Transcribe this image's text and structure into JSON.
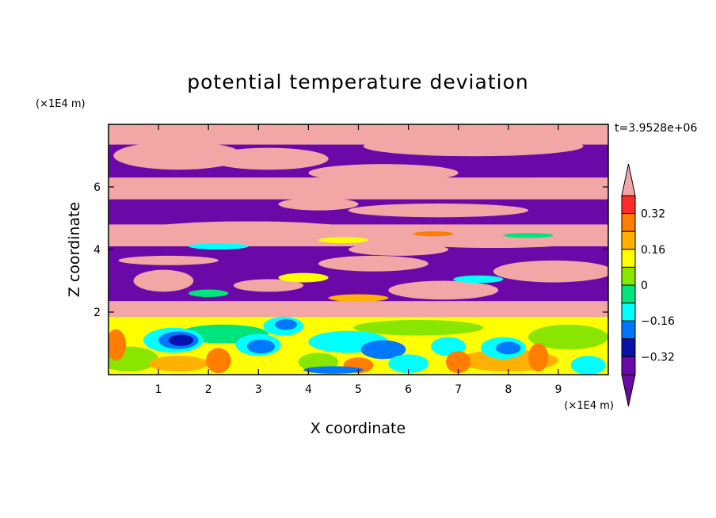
{
  "chart_data": {
    "type": "heatmap",
    "title": "potential temperature deviation",
    "xlabel": "X coordinate",
    "ylabel": "Z coordinate",
    "x_unit": "(×1E4 m)",
    "y_unit": "(×1E4 m)",
    "time_label": "t=3.9528e+06",
    "xlim": [
      0,
      10
    ],
    "ylim": [
      0,
      8
    ],
    "x_ticks": [
      1,
      2,
      3,
      4,
      5,
      6,
      7,
      8,
      9
    ],
    "y_ticks": [
      2,
      4,
      6
    ],
    "colorbar": {
      "levels": [
        -0.4,
        -0.32,
        -0.24,
        -0.16,
        -0.08,
        0,
        0.08,
        0.16,
        0.24,
        0.32,
        0.4
      ],
      "tick_labels": [
        "0.32",
        "0.16",
        "0",
        "−0.16",
        "−0.32"
      ],
      "tick_values": [
        0.32,
        0.16,
        0,
        -0.16,
        -0.32
      ],
      "colors": [
        "#f3a6a6",
        "#ff2b2b",
        "#ff7d00",
        "#ffb000",
        "#ffff00",
        "#89e600",
        "#00e47c",
        "#00ffff",
        "#0077ff",
        "#0a10aa",
        "#6b09a8",
        "#6b09a8"
      ],
      "extend": "both"
    },
    "background_bands": [
      {
        "z": [
          7.35,
          8.0
        ],
        "color": "#f3a6a6"
      },
      {
        "z": [
          6.3,
          7.35
        ],
        "color": "#6b09a8"
      },
      {
        "z": [
          5.6,
          6.3
        ],
        "color": "#f3a6a6"
      },
      {
        "z": [
          4.8,
          5.6
        ],
        "color": "#6b09a8"
      },
      {
        "z": [
          4.1,
          4.8
        ],
        "color": "#f3a6a6"
      },
      {
        "z": [
          3.55,
          4.1
        ],
        "color": "#6b09a8"
      },
      {
        "z": [
          2.35,
          3.55
        ],
        "color": "#6b09a8"
      },
      {
        "z": [
          1.85,
          2.35
        ],
        "color": "#f3a6a6"
      },
      {
        "z": [
          0.0,
          1.85
        ],
        "color": "#ffff00"
      }
    ],
    "features": [
      {
        "shape": "blob",
        "x": 1.4,
        "z": 7.0,
        "rx": 1.3,
        "rz": 0.45,
        "color": "#f3a6a6"
      },
      {
        "shape": "blob",
        "x": 3.2,
        "z": 6.9,
        "rx": 1.2,
        "rz": 0.35,
        "color": "#f3a6a6"
      },
      {
        "shape": "blob",
        "x": 7.3,
        "z": 7.3,
        "rx": 2.2,
        "rz": 0.32,
        "color": "#f3a6a6"
      },
      {
        "shape": "blob",
        "x": 5.5,
        "z": 6.45,
        "rx": 1.5,
        "rz": 0.28,
        "color": "#f3a6a6"
      },
      {
        "shape": "blob",
        "x": 8.8,
        "z": 6.0,
        "rx": 1.4,
        "rz": 0.3,
        "color": "#f3a6a6"
      },
      {
        "shape": "blob",
        "x": 6.6,
        "z": 5.25,
        "rx": 1.8,
        "rz": 0.22,
        "color": "#f3a6a6"
      },
      {
        "shape": "blob",
        "x": 4.2,
        "z": 5.45,
        "rx": 0.8,
        "rz": 0.2,
        "color": "#f3a6a6"
      },
      {
        "shape": "blob",
        "x": 2.8,
        "z": 4.6,
        "rx": 2.2,
        "rz": 0.3,
        "color": "#f3a6a6"
      },
      {
        "shape": "blob",
        "x": 7.7,
        "z": 4.3,
        "rx": 2.0,
        "rz": 0.25,
        "color": "#f3a6a6"
      },
      {
        "shape": "blob",
        "x": 5.8,
        "z": 4.0,
        "rx": 1.0,
        "rz": 0.2,
        "color": "#f3a6a6"
      },
      {
        "shape": "blob",
        "x": 1.2,
        "z": 3.65,
        "rx": 1.0,
        "rz": 0.15,
        "color": "#f3a6a6"
      },
      {
        "shape": "blob",
        "x": 5.3,
        "z": 3.55,
        "rx": 1.1,
        "rz": 0.25,
        "color": "#f3a6a6"
      },
      {
        "shape": "blob",
        "x": 8.9,
        "z": 3.3,
        "rx": 1.2,
        "rz": 0.35,
        "color": "#f3a6a6"
      },
      {
        "shape": "blob",
        "x": 1.1,
        "z": 3.0,
        "rx": 0.6,
        "rz": 0.35,
        "color": "#f3a6a6"
      },
      {
        "shape": "blob",
        "x": 6.7,
        "z": 2.7,
        "rx": 1.1,
        "rz": 0.3,
        "color": "#f3a6a6"
      },
      {
        "shape": "blob",
        "x": 3.2,
        "z": 2.85,
        "rx": 0.7,
        "rz": 0.2,
        "color": "#f3a6a6"
      },
      {
        "shape": "blob",
        "x": 2.2,
        "z": 4.1,
        "rx": 0.6,
        "rz": 0.1,
        "color": "#00ffff"
      },
      {
        "shape": "blob",
        "x": 4.7,
        "z": 4.3,
        "rx": 0.5,
        "rz": 0.1,
        "color": "#ffff00"
      },
      {
        "shape": "blob",
        "x": 6.5,
        "z": 4.5,
        "rx": 0.4,
        "rz": 0.08,
        "color": "#ff7d00"
      },
      {
        "shape": "blob",
        "x": 8.4,
        "z": 4.45,
        "rx": 0.5,
        "rz": 0.08,
        "color": "#00e47c"
      },
      {
        "shape": "blob",
        "x": 3.9,
        "z": 3.1,
        "rx": 0.5,
        "rz": 0.15,
        "color": "#ffff00"
      },
      {
        "shape": "blob",
        "x": 7.4,
        "z": 3.05,
        "rx": 0.5,
        "rz": 0.12,
        "color": "#00ffff"
      },
      {
        "shape": "blob",
        "x": 2.0,
        "z": 2.6,
        "rx": 0.4,
        "rz": 0.12,
        "color": "#00e47c"
      },
      {
        "shape": "blob",
        "x": 5.0,
        "z": 2.45,
        "rx": 0.6,
        "rz": 0.12,
        "color": "#ffb000"
      },
      {
        "shape": "blob",
        "x": 6.2,
        "z": 1.5,
        "rx": 1.3,
        "rz": 0.25,
        "color": "#89e600"
      },
      {
        "shape": "blob",
        "x": 2.3,
        "z": 1.3,
        "rx": 0.9,
        "rz": 0.3,
        "color": "#00e47c"
      },
      {
        "shape": "blob",
        "x": 4.8,
        "z": 1.05,
        "rx": 0.8,
        "rz": 0.35,
        "color": "#00ffff"
      },
      {
        "shape": "blob",
        "x": 9.2,
        "z": 1.2,
        "rx": 0.8,
        "rz": 0.4,
        "color": "#89e600"
      },
      {
        "shape": "blob",
        "x": 8.0,
        "z": 0.45,
        "rx": 1.0,
        "rz": 0.35,
        "color": "#ffb000"
      },
      {
        "shape": "blob",
        "x": 0.4,
        "z": 0.5,
        "rx": 0.6,
        "rz": 0.4,
        "color": "#89e600"
      },
      {
        "shape": "blob",
        "x": 1.4,
        "z": 0.35,
        "rx": 0.6,
        "rz": 0.25,
        "color": "#ffb000"
      },
      {
        "shape": "blob",
        "x": 1.3,
        "z": 1.1,
        "rx": 0.6,
        "rz": 0.4,
        "color": "#00ffff"
      },
      {
        "shape": "blob",
        "x": 1.4,
        "z": 1.1,
        "rx": 0.4,
        "rz": 0.28,
        "color": "#0077ff"
      },
      {
        "shape": "blob",
        "x": 1.45,
        "z": 1.1,
        "rx": 0.25,
        "rz": 0.18,
        "color": "#0a10aa"
      },
      {
        "shape": "blob",
        "x": 3.0,
        "z": 0.95,
        "rx": 0.45,
        "rz": 0.35,
        "color": "#00ffff"
      },
      {
        "shape": "blob",
        "x": 3.05,
        "z": 0.9,
        "rx": 0.28,
        "rz": 0.22,
        "color": "#0077ff"
      },
      {
        "shape": "blob",
        "x": 3.5,
        "z": 1.55,
        "rx": 0.4,
        "rz": 0.3,
        "color": "#00ffff"
      },
      {
        "shape": "blob",
        "x": 3.55,
        "z": 1.6,
        "rx": 0.22,
        "rz": 0.17,
        "color": "#0077ff"
      },
      {
        "shape": "blob",
        "x": 5.5,
        "z": 0.8,
        "rx": 0.45,
        "rz": 0.3,
        "color": "#0077ff"
      },
      {
        "shape": "blob",
        "x": 6.8,
        "z": 0.9,
        "rx": 0.35,
        "rz": 0.3,
        "color": "#00ffff"
      },
      {
        "shape": "blob",
        "x": 7.9,
        "z": 0.85,
        "rx": 0.45,
        "rz": 0.35,
        "color": "#00ffff"
      },
      {
        "shape": "blob",
        "x": 8.0,
        "z": 0.85,
        "rx": 0.25,
        "rz": 0.2,
        "color": "#0077ff"
      },
      {
        "shape": "blob",
        "x": 4.2,
        "z": 0.4,
        "rx": 0.4,
        "rz": 0.3,
        "color": "#89e600"
      },
      {
        "shape": "blob",
        "x": 5.0,
        "z": 0.3,
        "rx": 0.3,
        "rz": 0.25,
        "color": "#ff7d00"
      },
      {
        "shape": "blob",
        "x": 2.2,
        "z": 0.45,
        "rx": 0.25,
        "rz": 0.4,
        "color": "#ff7d00"
      },
      {
        "shape": "blob",
        "x": 8.6,
        "z": 0.55,
        "rx": 0.2,
        "rz": 0.45,
        "color": "#ff7d00"
      },
      {
        "shape": "blob",
        "x": 7.0,
        "z": 0.4,
        "rx": 0.25,
        "rz": 0.35,
        "color": "#ff7d00"
      },
      {
        "shape": "blob",
        "x": 0.15,
        "z": 0.95,
        "rx": 0.2,
        "rz": 0.5,
        "color": "#ff7d00"
      },
      {
        "shape": "blob",
        "x": 6.0,
        "z": 0.35,
        "rx": 0.4,
        "rz": 0.3,
        "color": "#00ffff"
      },
      {
        "shape": "blob",
        "x": 4.5,
        "z": 0.15,
        "rx": 0.6,
        "rz": 0.12,
        "color": "#0077ff"
      },
      {
        "shape": "blob",
        "x": 9.6,
        "z": 0.3,
        "rx": 0.35,
        "rz": 0.3,
        "color": "#00ffff"
      }
    ]
  }
}
